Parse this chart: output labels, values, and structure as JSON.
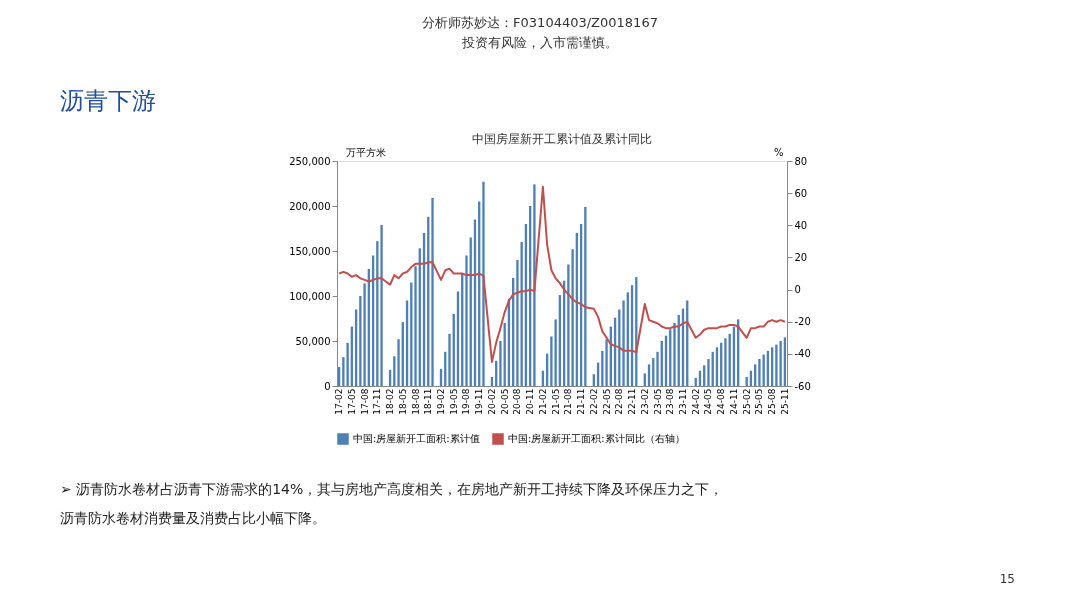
{
  "chart_data": {
    "type": "bar",
    "title": "中国房屋新开工累计值及累计同比",
    "ylabel": "万平方米",
    "y2label": "%",
    "categories": [
      "17-02",
      null,
      null,
      "17-05",
      null,
      null,
      "17-08",
      null,
      null,
      "17-11",
      null,
      null,
      "18-02",
      null,
      null,
      "18-05",
      null,
      null,
      "18-08",
      null,
      null,
      "18-11",
      null,
      null,
      "19-02",
      null,
      null,
      "19-05",
      null,
      null,
      "19-08",
      null,
      null,
      "19-11",
      null,
      null,
      "20-02",
      null,
      null,
      "20-05",
      null,
      null,
      "20-08",
      null,
      null,
      "20-11",
      null,
      null,
      "21-02",
      null,
      null,
      "21-05",
      null,
      null,
      "21-08",
      null,
      null,
      "21-11",
      null,
      null,
      "22-02",
      null,
      null,
      "22-05",
      null,
      null,
      "22-08",
      null,
      null,
      "22-11",
      null,
      null,
      "23-02",
      null,
      null,
      "23-05",
      null,
      null,
      "23-08",
      null,
      null,
      "23-11",
      null,
      null,
      "24-02",
      null,
      null,
      "24-05",
      null,
      null,
      "24-08",
      null,
      null,
      "24-11",
      null,
      null,
      "25-02",
      null,
      null,
      "25-05",
      null,
      null,
      "25-08",
      null,
      null,
      "25-11"
    ],
    "series": [
      {
        "name": "中国:房屋新开工面积:累计值",
        "color": "#4f7fb3",
        "values": [
          21000,
          32000,
          48000,
          66000,
          85000,
          100000,
          114000,
          130000,
          145000,
          161000,
          179000,
          null,
          18000,
          33000,
          52000,
          71000,
          95000,
          115000,
          133000,
          153000,
          170000,
          188000,
          209000,
          null,
          19000,
          38000,
          58000,
          80000,
          105000,
          125000,
          145000,
          165000,
          185000,
          205000,
          227000,
          null,
          10000,
          28000,
          50000,
          70000,
          97000,
          120000,
          140000,
          160000,
          180000,
          200000,
          224000,
          null,
          17000,
          36000,
          55000,
          74000,
          101000,
          117000,
          135000,
          152000,
          170000,
          180000,
          199000,
          null,
          13000,
          26000,
          39000,
          52000,
          66000,
          76000,
          85000,
          95000,
          104000,
          112000,
          121000,
          null,
          14000,
          24000,
          31000,
          38000,
          50000,
          56000,
          63000,
          70000,
          79000,
          86000,
          95000,
          null,
          9000,
          17000,
          23000,
          30000,
          38000,
          43000,
          48000,
          53000,
          58000,
          66000,
          74000,
          null,
          10000,
          17000,
          24000,
          30000,
          35000,
          39000,
          43000,
          46000,
          50000,
          54000
        ]
      },
      {
        "name": "中国:房屋新开工面积:累计同比（右轴）",
        "type": "line",
        "axis": "y2",
        "color": "#c0504d",
        "values": [
          10,
          11,
          10,
          8,
          9,
          7,
          6,
          5,
          6,
          7,
          7,
          null,
          3,
          9,
          7,
          10,
          11,
          14,
          16,
          16,
          16,
          17,
          17,
          null,
          6,
          12,
          13,
          10,
          10,
          10,
          9,
          9,
          9,
          10,
          8.5,
          null,
          -45,
          -33,
          -24,
          -14,
          -7,
          -3,
          -2,
          -1,
          -1,
          0,
          -1,
          null,
          64,
          28,
          12,
          7,
          4,
          0,
          -3,
          -6,
          -8,
          -9,
          -11,
          null,
          -12,
          -17,
          -26,
          -30,
          -34,
          -35,
          -36,
          -38,
          -38,
          -38,
          -39,
          null,
          -9,
          -19,
          -20,
          -21,
          -23,
          -24,
          -24,
          -23,
          -23,
          -21,
          -20,
          null,
          -30,
          -28,
          -25,
          -24,
          -24,
          -24,
          -23,
          -23,
          -22,
          -22,
          -23,
          null,
          -30,
          -24,
          -24,
          -23,
          -23,
          -20,
          -19,
          -20,
          -19,
          -20
        ]
      }
    ],
    "ylim": [
      0,
      250000
    ],
    "yticks": [
      {
        "value": 0,
        "label": "0"
      },
      {
        "value": 50000,
        "label": "50,000"
      },
      {
        "value": 100000,
        "label": "100,000"
      },
      {
        "value": 150000,
        "label": "150,000"
      },
      {
        "value": 200000,
        "label": "200,000"
      },
      {
        "value": 250000,
        "label": "250,000"
      }
    ],
    "y2lim": [
      -60,
      80
    ],
    "y2ticks": [
      -60,
      -40,
      -20,
      0,
      20,
      40,
      60,
      80
    ],
    "grid": false,
    "legend": "bottom",
    "annotations": [
      "沥青下游",
      "分析师苏妙达：F03104403/Z0018167",
      "投资有风险，入市需谨慎。",
      "➢  沥青防水卷材占沥青下游需求的14%，其与房地产高度相关，在房地产新开工持续下降及环保压力之下，沥青防水卷材消费量及消费占比小幅下降。",
      "15"
    ]
  }
}
